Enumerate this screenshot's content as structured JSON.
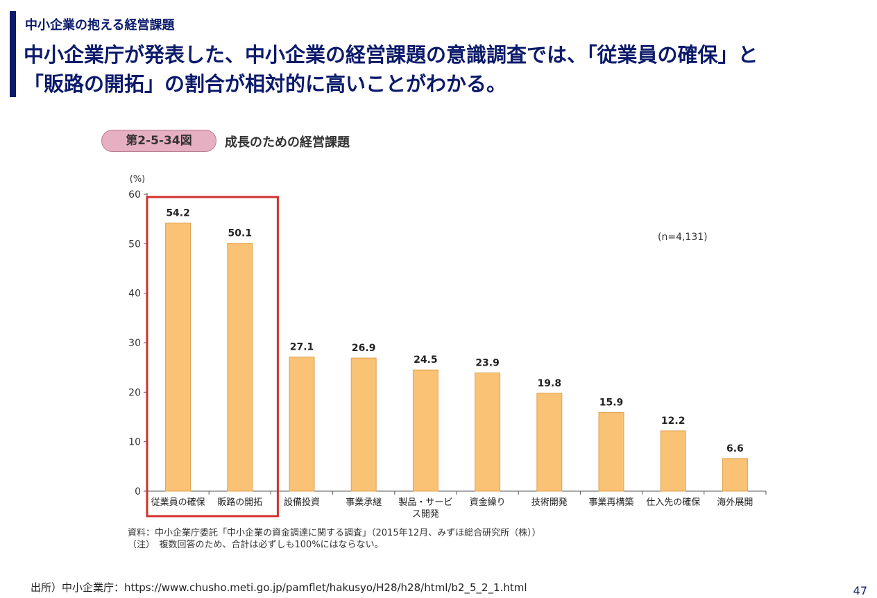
{
  "header": {
    "section_label": "中小企業の抱える経営課題",
    "headline_line1": "中小企業庁が発表した、中小企業の経営課題の意識調査では、「従業員の確保」と",
    "headline_line2": "「販路の開拓」の割合が相対的に高いことがわかる。"
  },
  "figure": {
    "badge": "第2-5-34図",
    "title": "成長のための経営課題"
  },
  "chart_data": {
    "type": "bar",
    "title": "成長のための経営課題",
    "ylabel": "(%)",
    "xlabel": "",
    "ylim": [
      0,
      60
    ],
    "yticks": [
      0,
      10,
      20,
      30,
      40,
      50,
      60
    ],
    "grid": false,
    "categories": [
      [
        "従業員の確保"
      ],
      [
        "販路の開拓"
      ],
      [
        "設備投資"
      ],
      [
        "事業承継"
      ],
      [
        "製品・サービ",
        "ス開発"
      ],
      [
        "資金繰り"
      ],
      [
        "技術開発"
      ],
      [
        "事業再構築"
      ],
      [
        "仕入先の確保"
      ],
      [
        "海外展開"
      ]
    ],
    "values": [
      54.2,
      50.1,
      27.1,
      26.9,
      24.5,
      23.9,
      19.8,
      15.9,
      12.2,
      6.6
    ],
    "value_labels": [
      "54.2",
      "50.1",
      "27.1",
      "26.9",
      "24.5",
      "23.9",
      "19.8",
      "15.9",
      "12.2",
      "6.6"
    ],
    "annotation": "(n=4,131)",
    "highlight": {
      "categories": [
        "従業員の確保",
        "販路の開拓"
      ],
      "color": "#d32f2f"
    },
    "bar_color": "#f9c275",
    "bar_stroke": "#e0a24e"
  },
  "notes": {
    "line1": "資料：中小企業庁委託「中小企業の資金調達に関する調査」（2015年12月、みずほ総合研究所（株））",
    "line2": "（注）　複数回答のため、合計は必ずしも100%にはならない。"
  },
  "footer": {
    "source": "出所）中小企業庁：https://www.chusho.meti.go.jp/pamflet/hakusyo/H28/h28/html/b2_5_2_1.html",
    "page_number": "47"
  }
}
